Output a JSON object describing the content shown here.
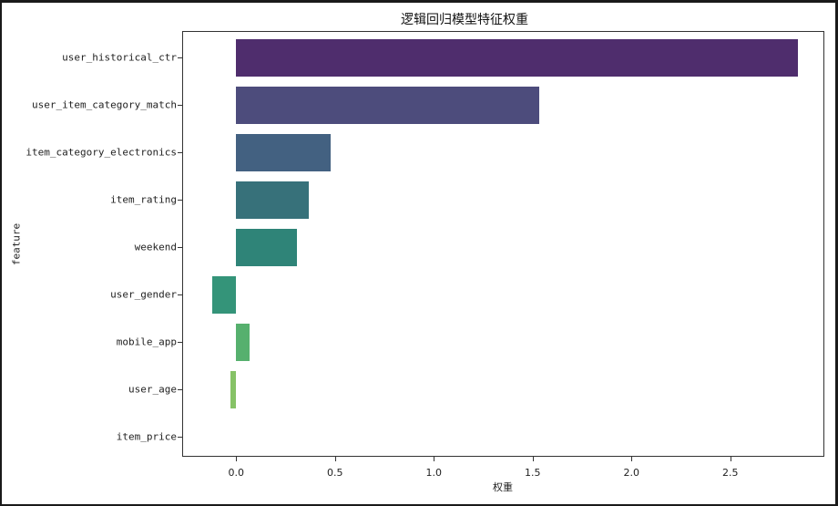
{
  "chart_data": {
    "type": "bar",
    "orientation": "horizontal",
    "title": "逻辑回归模型特征权重",
    "xlabel": "权重",
    "ylabel": "feature",
    "categories": [
      "user_historical_ctr",
      "user_item_category_match",
      "item_category_electronics",
      "item_rating",
      "weekend",
      "user_gender",
      "mobile_app",
      "user_age",
      "item_price"
    ],
    "values": [
      2.84,
      1.535,
      0.48,
      0.366,
      0.306,
      -0.123,
      0.068,
      -0.03,
      0.0
    ],
    "colors": [
      "#4f2d6d",
      "#4d4c7c",
      "#436181",
      "#37717a",
      "#2f8478",
      "#349479",
      "#56b06e",
      "#86c266",
      "#b5d35a"
    ],
    "xlim": [
      -0.26,
      2.98
    ],
    "xticks": [
      "0.0",
      "0.5",
      "1.0",
      "1.5",
      "2.0",
      "2.5"
    ],
    "xtick_values": [
      0.0,
      0.5,
      1.0,
      1.5,
      2.0,
      2.5
    ],
    "grid": false,
    "legend": null,
    "palette": "viridis"
  }
}
